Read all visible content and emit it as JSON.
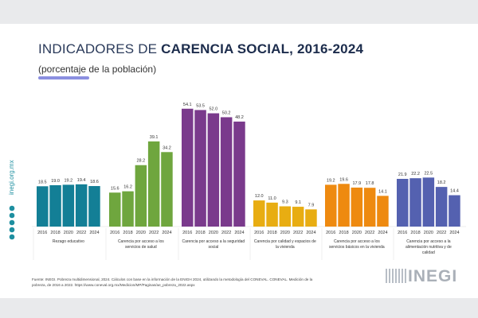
{
  "title_plain": "INDICADORES DE ",
  "title_bold": "CARENCIA SOCIAL, 2016-2024",
  "subtitle": "(porcentaje de la población)",
  "side_text": "inegi.org.mx",
  "source": "Fuente: INEGI. Pobreza multidimensional, 2024. Cálculos con base en la información de la ENIGH 2024, utilizando la metodología del CONEVAL. CONEVAL. Medición de la pobreza, de 2016 a 2022. https://www.coneval.org.mx/Medicion/MP/Paginas/ae_pobreza_2022.aspx",
  "logo": "INEGI",
  "chart_data": {
    "type": "bar",
    "title": "INDICADORES DE CARENCIA SOCIAL, 2016-2024",
    "subtitle": "(porcentaje de la población)",
    "years": [
      "2016",
      "2018",
      "2020",
      "2022",
      "2024"
    ],
    "grid": false,
    "groups": [
      {
        "name": "Rezago educativo",
        "color": "#137f96",
        "values": [
          18.5,
          19.0,
          19.2,
          19.4,
          18.6
        ]
      },
      {
        "name": "Carencia por acceso a los servicios de salud",
        "color": "#6fa63e",
        "values": [
          15.6,
          16.2,
          28.2,
          39.1,
          34.2
        ]
      },
      {
        "name": "Carencia por acceso a la seguridad social",
        "color": "#7a3a8c",
        "values": [
          54.1,
          53.5,
          52.0,
          50.2,
          48.2
        ]
      },
      {
        "name": "Carencia por calidad y espacios de la vivienda",
        "color": "#e8ad12",
        "values": [
          12.0,
          11.0,
          9.3,
          9.1,
          7.9
        ]
      },
      {
        "name": "Carencia por acceso a los servicios básicos en la vivienda",
        "color": "#ee8a10",
        "values": [
          19.2,
          19.6,
          17.9,
          17.8,
          14.1
        ]
      },
      {
        "name": "Carencia por acceso a la alimentación nutritiva y de calidad",
        "color": "#5461b0",
        "values": [
          21.9,
          22.2,
          22.5,
          18.2,
          14.4
        ]
      }
    ]
  }
}
